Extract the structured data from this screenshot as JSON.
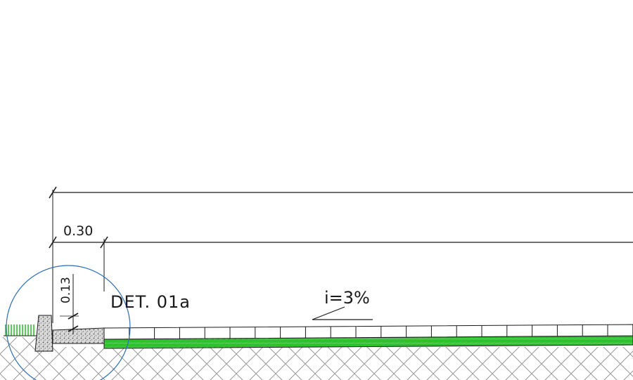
{
  "drawing": {
    "dimension_width": "0.30",
    "dimension_height": "0.13",
    "detail_label": "DET. 01a",
    "slope_label": "i=3%"
  },
  "colors": {
    "line": "#1a1a1a",
    "grass": "#2ec22e",
    "detail_circle": "#2f6fb5",
    "hatch": "#9a9a9a",
    "concrete": "#c8c8c8"
  }
}
